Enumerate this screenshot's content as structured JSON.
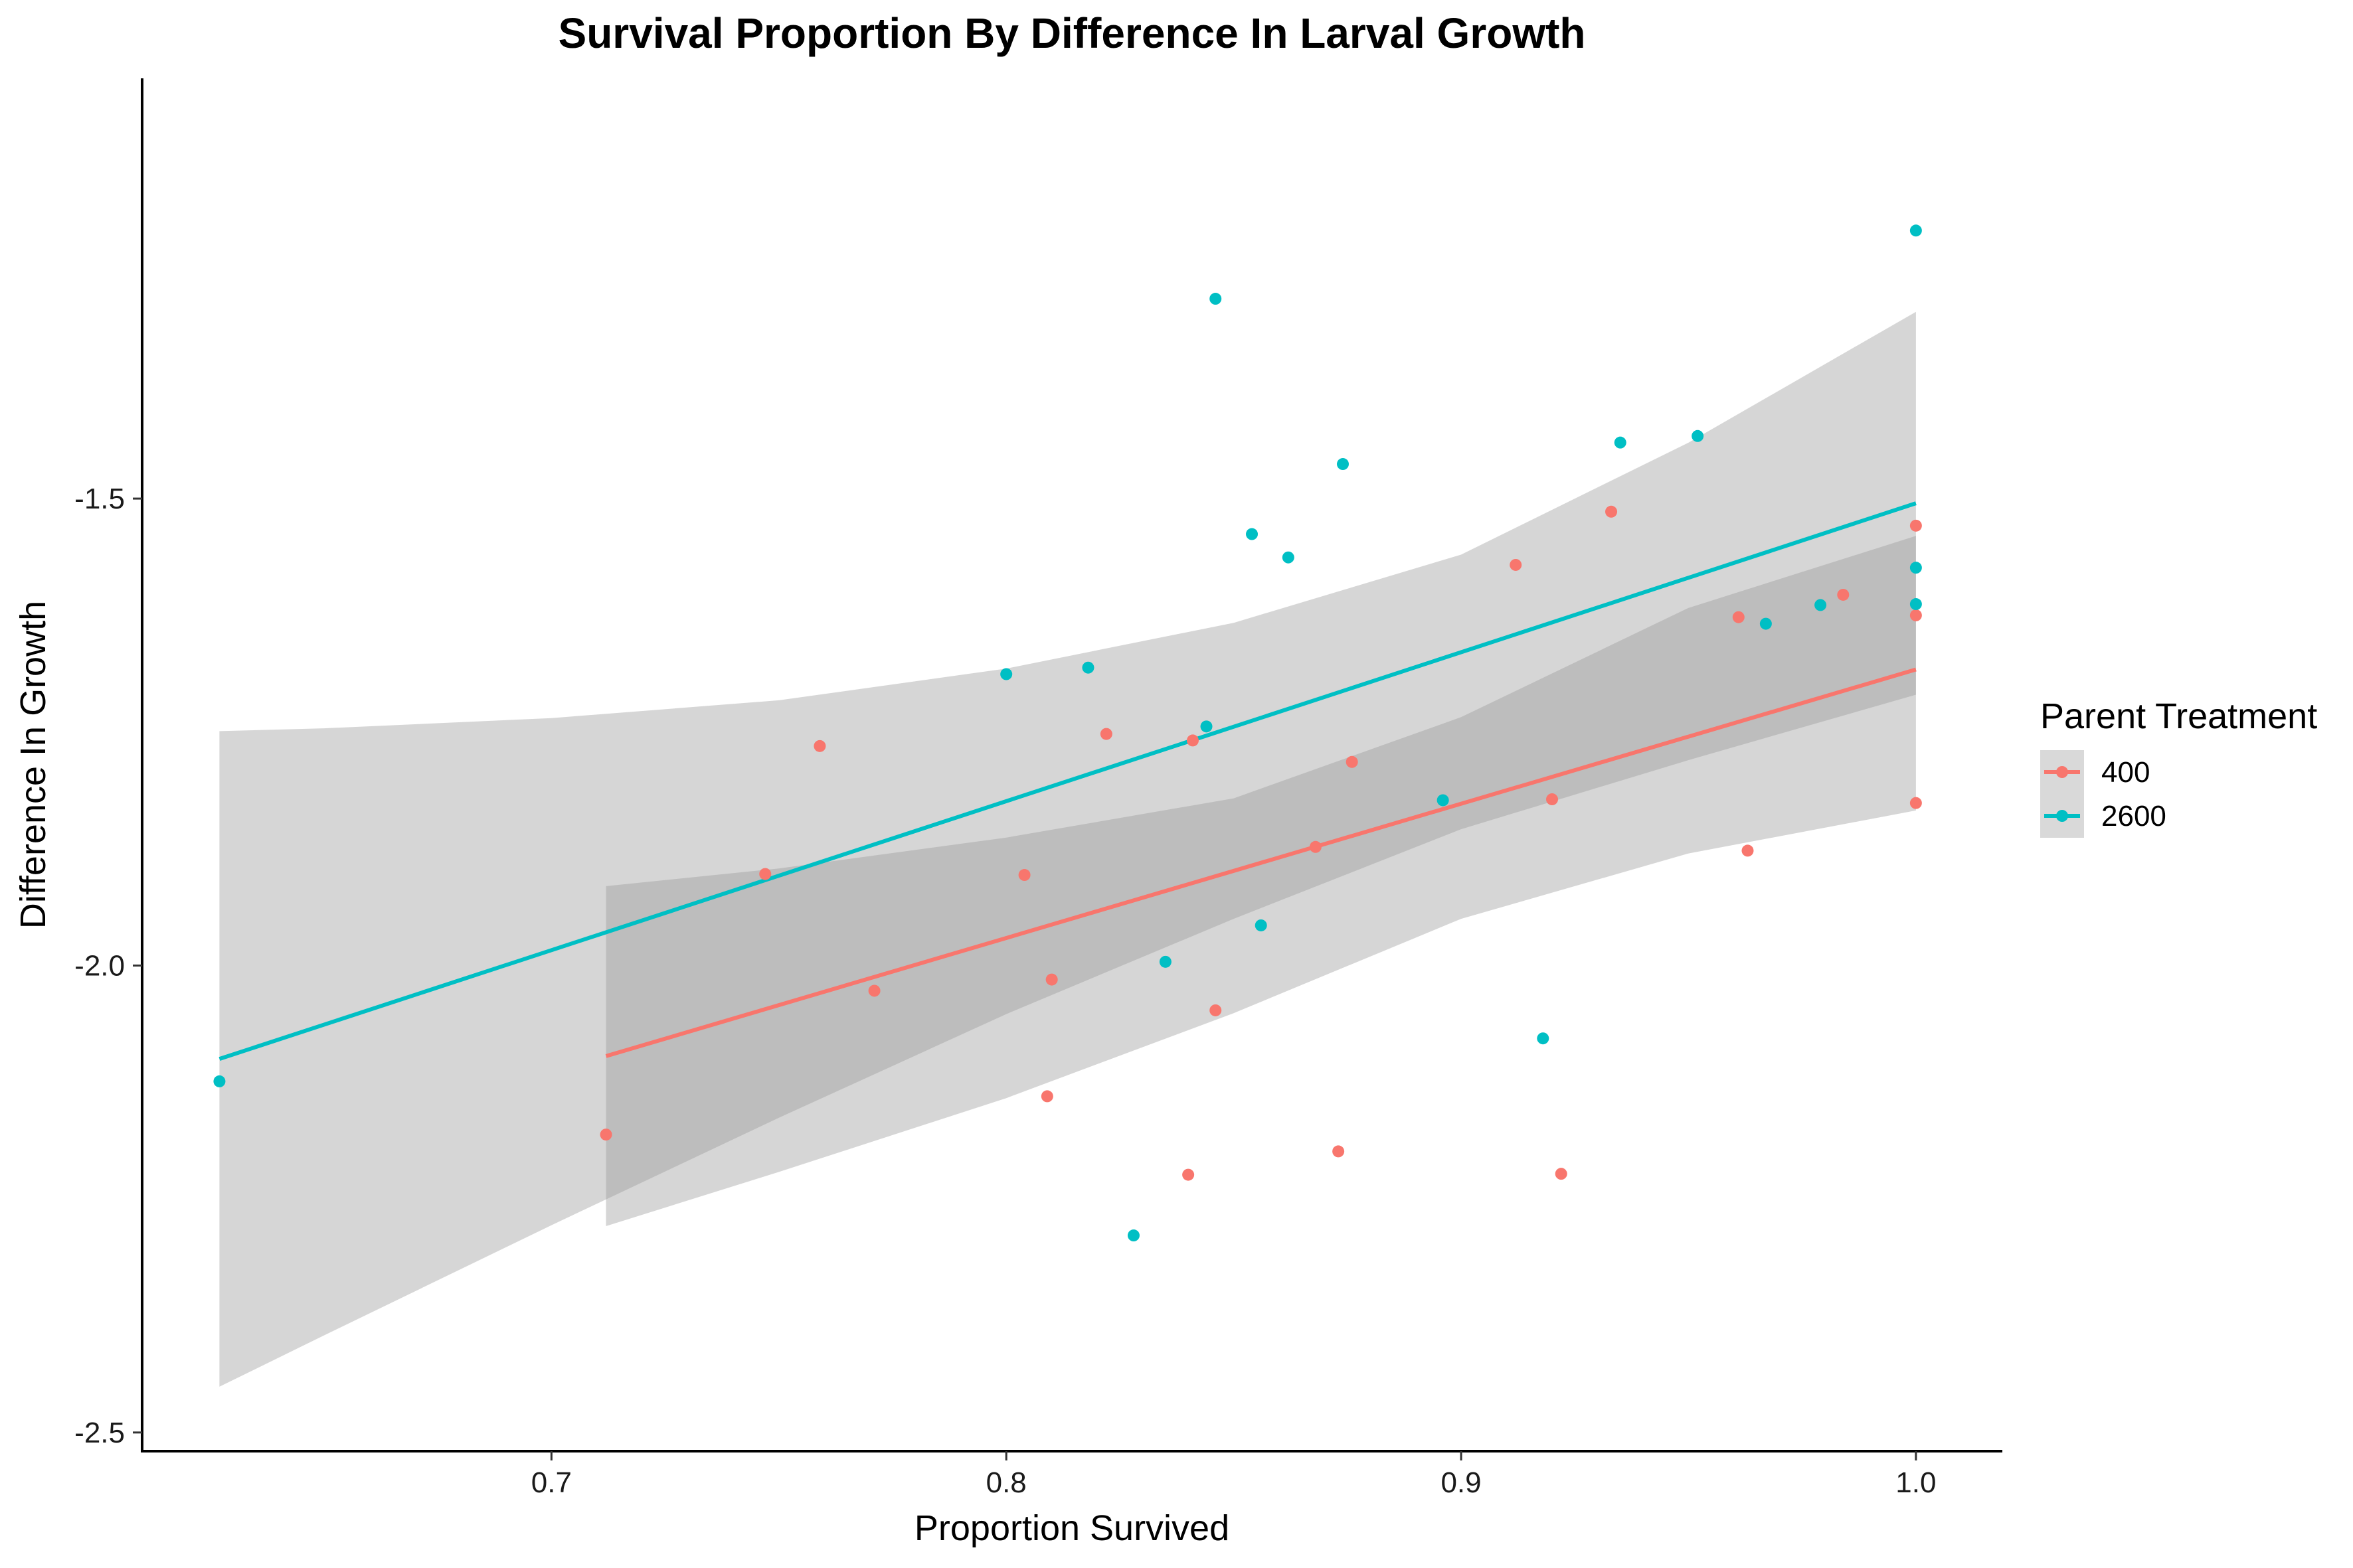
{
  "chart_data": {
    "type": "scatter",
    "title": "Survival Proportion By Difference In Larval Growth",
    "xlabel": "Proportion Survived",
    "ylabel": "Difference In Growth",
    "xlim": [
      0.61,
      1.019
    ],
    "ylim": [
      -2.52,
      -1.05
    ],
    "xticks": [
      0.7,
      0.8,
      0.9,
      1.0
    ],
    "xtick_labels": [
      "0.7",
      "0.8",
      "0.9",
      "1.0"
    ],
    "yticks": [
      -2.5,
      -2.0,
      -1.5
    ],
    "ytick_labels": [
      "-2.5",
      "-2.0",
      "-1.5"
    ],
    "grid": false,
    "legend": {
      "title": "Parent Treatment",
      "position": "right",
      "entries": [
        "400",
        "2600"
      ]
    },
    "series": [
      {
        "name": "400",
        "color": "#F8766D",
        "points": [
          [
            0.712,
            -2.181
          ],
          [
            0.747,
            -1.902
          ],
          [
            0.759,
            -1.765
          ],
          [
            0.771,
            -2.027
          ],
          [
            0.804,
            -1.903
          ],
          [
            0.809,
            -2.14
          ],
          [
            0.81,
            -2.015
          ],
          [
            0.822,
            -1.752
          ],
          [
            0.84,
            -2.224
          ],
          [
            0.841,
            -1.759
          ],
          [
            0.846,
            -2.048
          ],
          [
            0.868,
            -1.873
          ],
          [
            0.873,
            -2.199
          ],
          [
            0.876,
            -1.782
          ],
          [
            0.912,
            -1.571
          ],
          [
            0.92,
            -1.822
          ],
          [
            0.922,
            -2.223
          ],
          [
            0.933,
            -1.514
          ],
          [
            0.961,
            -1.627
          ],
          [
            0.963,
            -1.877
          ],
          [
            0.984,
            -1.603
          ],
          [
            1.0,
            -1.529
          ],
          [
            1.0,
            -1.625
          ],
          [
            1.0,
            -1.826
          ]
        ],
        "fit": {
          "x": [
            0.712,
            1.0
          ],
          "y": [
            -2.097,
            -1.683
          ]
        },
        "ci_lower": [
          [
            0.712,
            -2.279
          ],
          [
            0.75,
            -2.221
          ],
          [
            0.8,
            -2.142
          ],
          [
            0.85,
            -2.051
          ],
          [
            0.9,
            -1.95
          ],
          [
            0.95,
            -1.88
          ],
          [
            1.0,
            -1.834
          ]
        ],
        "ci_upper": [
          [
            0.712,
            -1.915
          ],
          [
            0.75,
            -1.896
          ],
          [
            0.8,
            -1.863
          ],
          [
            0.85,
            -1.821
          ],
          [
            0.9,
            -1.734
          ],
          [
            0.95,
            -1.617
          ],
          [
            1.0,
            -1.54
          ]
        ]
      },
      {
        "name": "2600",
        "color": "#00BFC4",
        "points": [
          [
            0.627,
            -2.124
          ],
          [
            0.8,
            -1.688
          ],
          [
            0.818,
            -1.681
          ],
          [
            0.828,
            -2.289
          ],
          [
            0.835,
            -1.996
          ],
          [
            0.844,
            -1.744
          ],
          [
            0.846,
            -1.286
          ],
          [
            0.854,
            -1.538
          ],
          [
            0.856,
            -1.957
          ],
          [
            0.862,
            -1.563
          ],
          [
            0.874,
            -1.463
          ],
          [
            0.896,
            -1.823
          ],
          [
            0.918,
            -2.078
          ],
          [
            0.935,
            -1.44
          ],
          [
            0.952,
            -1.433
          ],
          [
            0.967,
            -1.634
          ],
          [
            0.979,
            -1.614
          ],
          [
            1.0,
            -1.213
          ],
          [
            1.0,
            -1.574
          ],
          [
            1.0,
            -1.613
          ]
        ],
        "fit": {
          "x": [
            0.627,
            1.0
          ],
          "y": [
            -2.1,
            -1.505
          ]
        },
        "ci_lower": [
          [
            0.627,
            -2.451
          ],
          [
            0.65,
            -2.396
          ],
          [
            0.7,
            -2.278
          ],
          [
            0.75,
            -2.163
          ],
          [
            0.8,
            -2.052
          ],
          [
            0.85,
            -1.95
          ],
          [
            0.9,
            -1.854
          ],
          [
            0.95,
            -1.78
          ],
          [
            1.0,
            -1.71
          ]
        ],
        "ci_upper": [
          [
            0.627,
            -1.749
          ],
          [
            0.65,
            -1.746
          ],
          [
            0.7,
            -1.735
          ],
          [
            0.75,
            -1.716
          ],
          [
            0.8,
            -1.682
          ],
          [
            0.85,
            -1.633
          ],
          [
            0.9,
            -1.56
          ],
          [
            0.95,
            -1.44
          ],
          [
            1.0,
            -1.3
          ]
        ]
      }
    ]
  }
}
